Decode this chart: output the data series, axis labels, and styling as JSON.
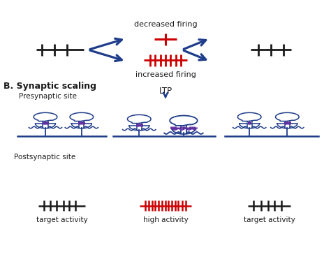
{
  "fig_width": 4.74,
  "fig_height": 3.81,
  "dpi": 100,
  "bg_color": "#ffffff",
  "black": "#1a1a1a",
  "blue": "#1f3d8a",
  "red": "#cc0000",
  "purple": "#6030a0",
  "text_color": "#1a1a1a",
  "label_B": "B. Synaptic scaling",
  "label_pre": "Presynaptic site",
  "label_post": "Postsynaptic site",
  "label_ltp": "LTP",
  "label_decreased": "decreased firing",
  "label_increased": "increased firing",
  "label_target1": "target activity",
  "label_high": "high activity",
  "label_target2": "target activity"
}
